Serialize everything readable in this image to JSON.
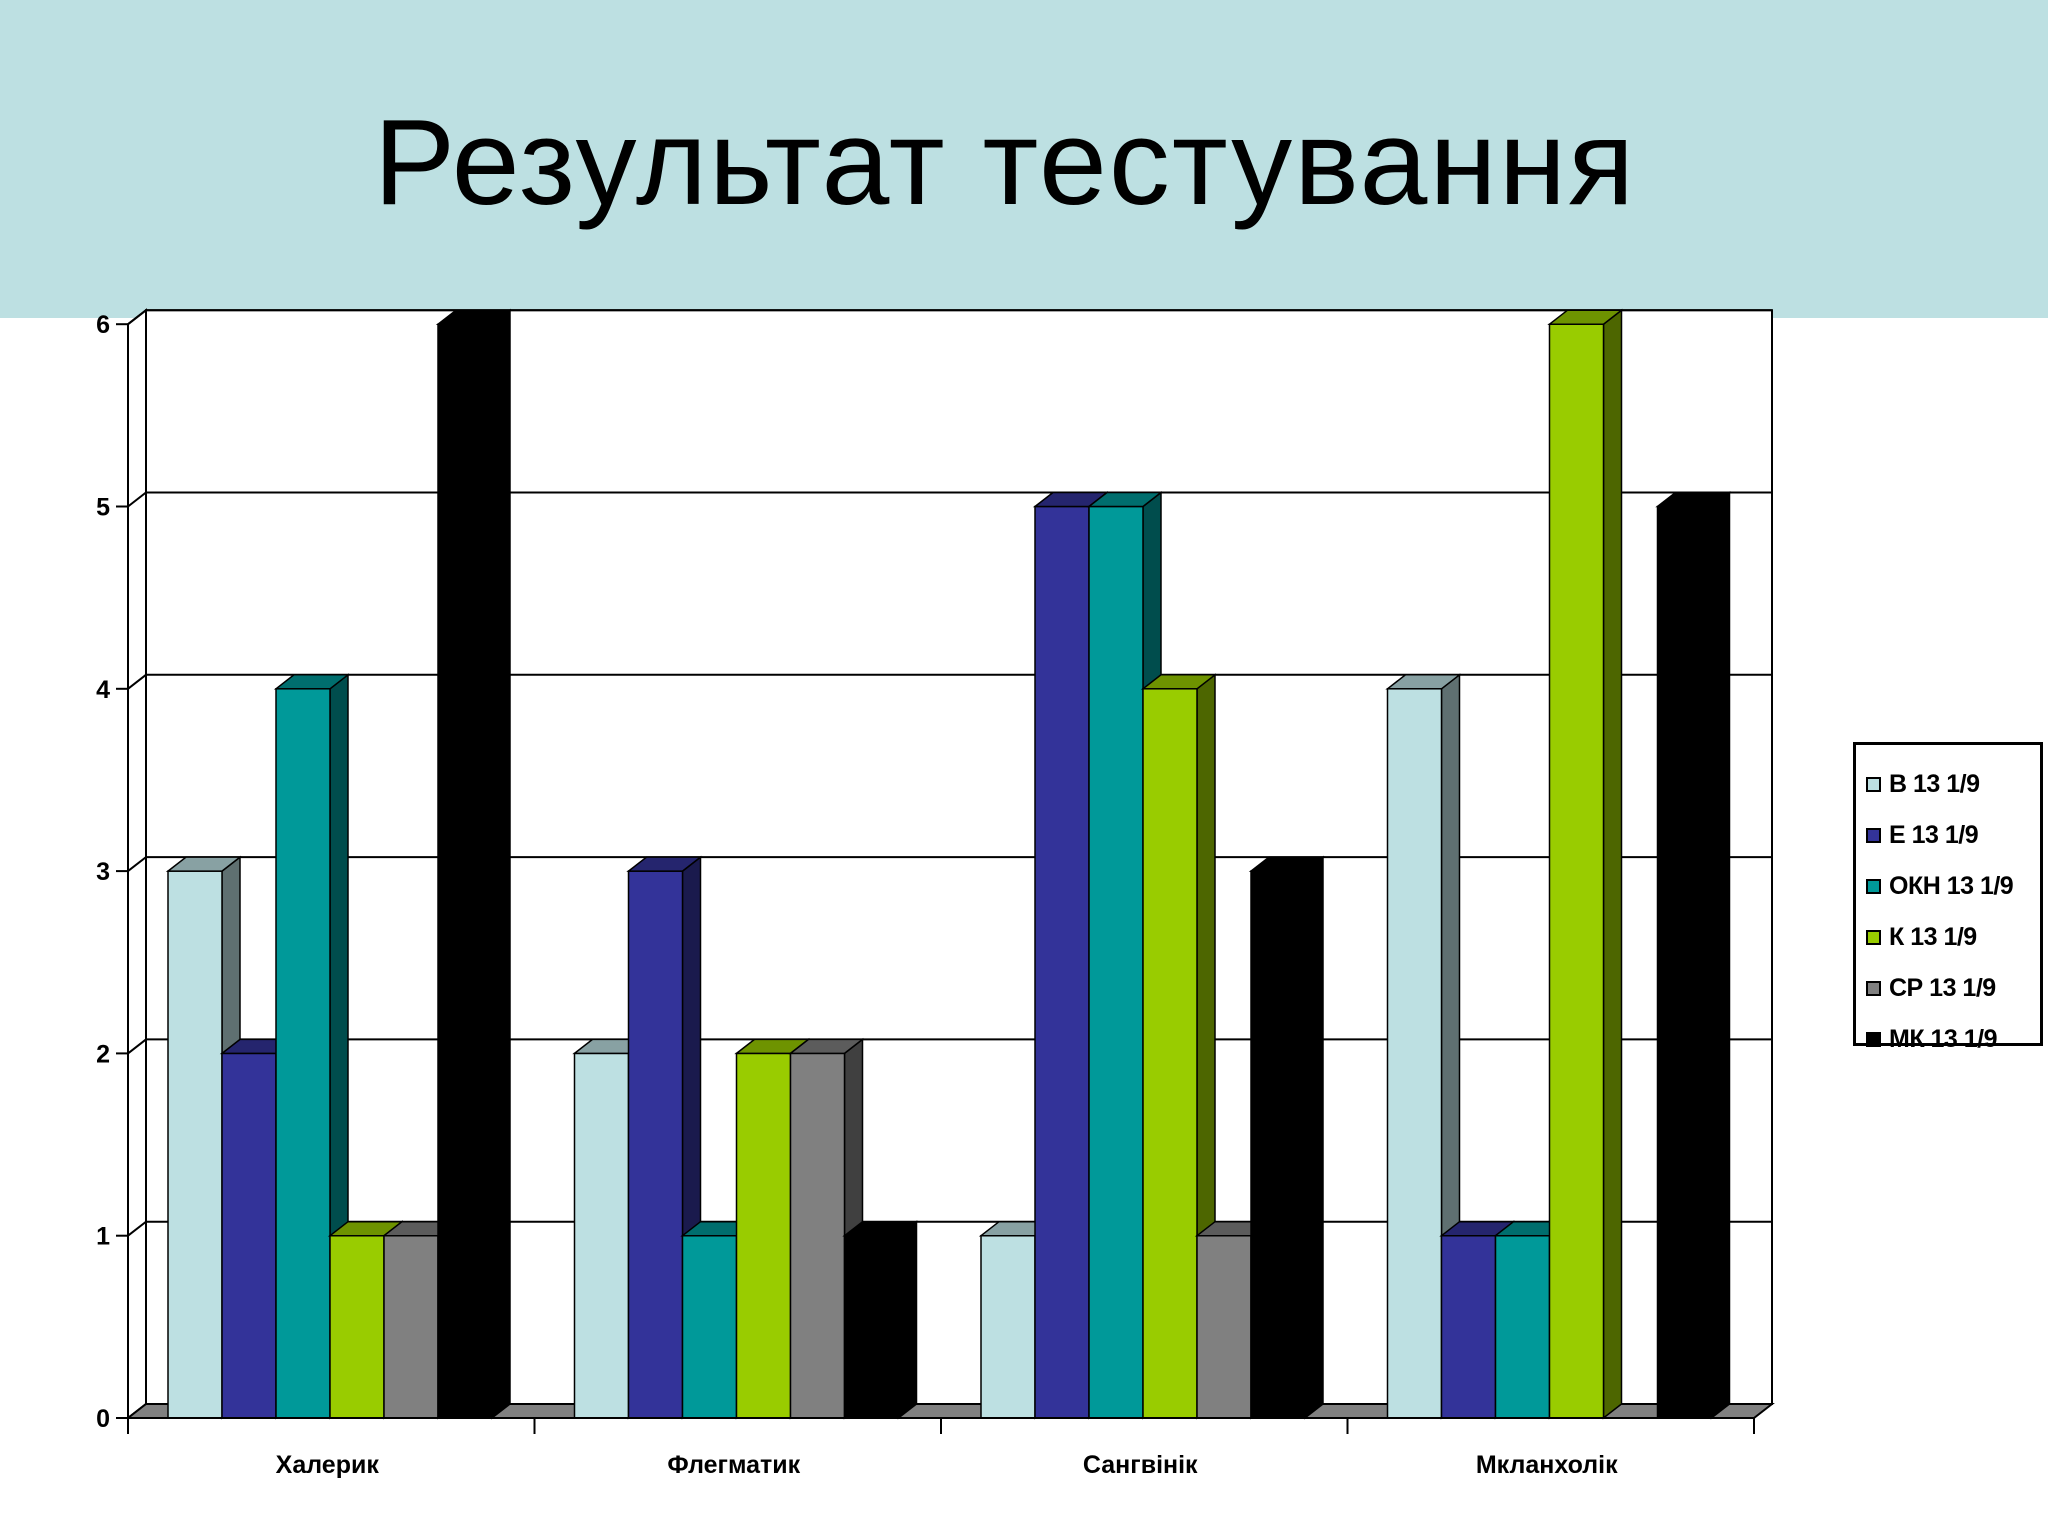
{
  "slide": {
    "title": "Результат тестування"
  },
  "colors": {
    "band": "#bde0e2"
  },
  "chart_data": {
    "type": "bar",
    "style": "3d-clustered-column",
    "categories": [
      "Халерик",
      "Флегматик",
      "Сангвінік",
      "Мкланхолік"
    ],
    "series": [
      {
        "name": "В 13 1/9",
        "color": "#bde0e2",
        "values": [
          3,
          2,
          1,
          4
        ]
      },
      {
        "name": "Е 13 1/9",
        "color": "#333399",
        "values": [
          2,
          3,
          5,
          1
        ]
      },
      {
        "name": "ОКН 13 1/9",
        "color": "#009999",
        "values": [
          4,
          1,
          5,
          1
        ]
      },
      {
        "name": "К 13 1/9",
        "color": "#99cc00",
        "values": [
          1,
          2,
          4,
          6
        ]
      },
      {
        "name": "СР 13 1/9",
        "color": "#808080",
        "values": [
          1,
          2,
          1,
          0
        ]
      },
      {
        "name": "МК 13 1/9",
        "color": "#000000",
        "values": [
          6,
          1,
          3,
          5
        ]
      }
    ],
    "ylim": [
      0,
      6
    ],
    "yticks": [
      "0",
      "1",
      "2",
      "3",
      "4",
      "5",
      "6"
    ],
    "grid": true,
    "legend_position": "right"
  }
}
